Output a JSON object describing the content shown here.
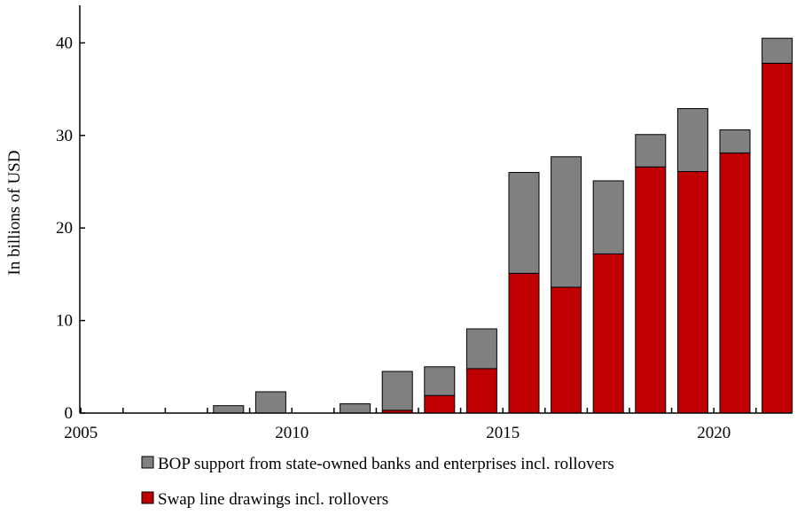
{
  "chart_data": {
    "type": "bar",
    "stacked": true,
    "title": "",
    "xlabel": "",
    "ylabel": "In billions of USD",
    "ylim": [
      0,
      44
    ],
    "yticks": [
      0,
      10,
      20,
      30,
      40
    ],
    "xticks": [
      "2005",
      "2010",
      "2015",
      "2020"
    ],
    "grid": false,
    "legend_position": "bottom",
    "categories": [
      "2005",
      "2006",
      "2007",
      "2008",
      "2009",
      "2010",
      "2011",
      "2012",
      "2013",
      "2014",
      "2015",
      "2016",
      "2017",
      "2018",
      "2019",
      "2020",
      "2021"
    ],
    "series": [
      {
        "name": "Swap line drawings incl. rollovers",
        "color": "#c00000",
        "values": [
          0,
          0,
          0,
          0,
          0,
          0,
          0,
          0.3,
          1.9,
          4.8,
          15.1,
          13.6,
          17.2,
          26.6,
          26.1,
          28.1,
          37.8
        ]
      },
      {
        "name": "BOP support from state-owned banks and enterprises incl. rollovers",
        "color": "#808080",
        "values": [
          0,
          0,
          0,
          0.8,
          2.3,
          0,
          1.0,
          4.2,
          3.1,
          4.3,
          10.9,
          14.1,
          7.9,
          3.5,
          6.8,
          2.5,
          2.7
        ]
      }
    ]
  }
}
